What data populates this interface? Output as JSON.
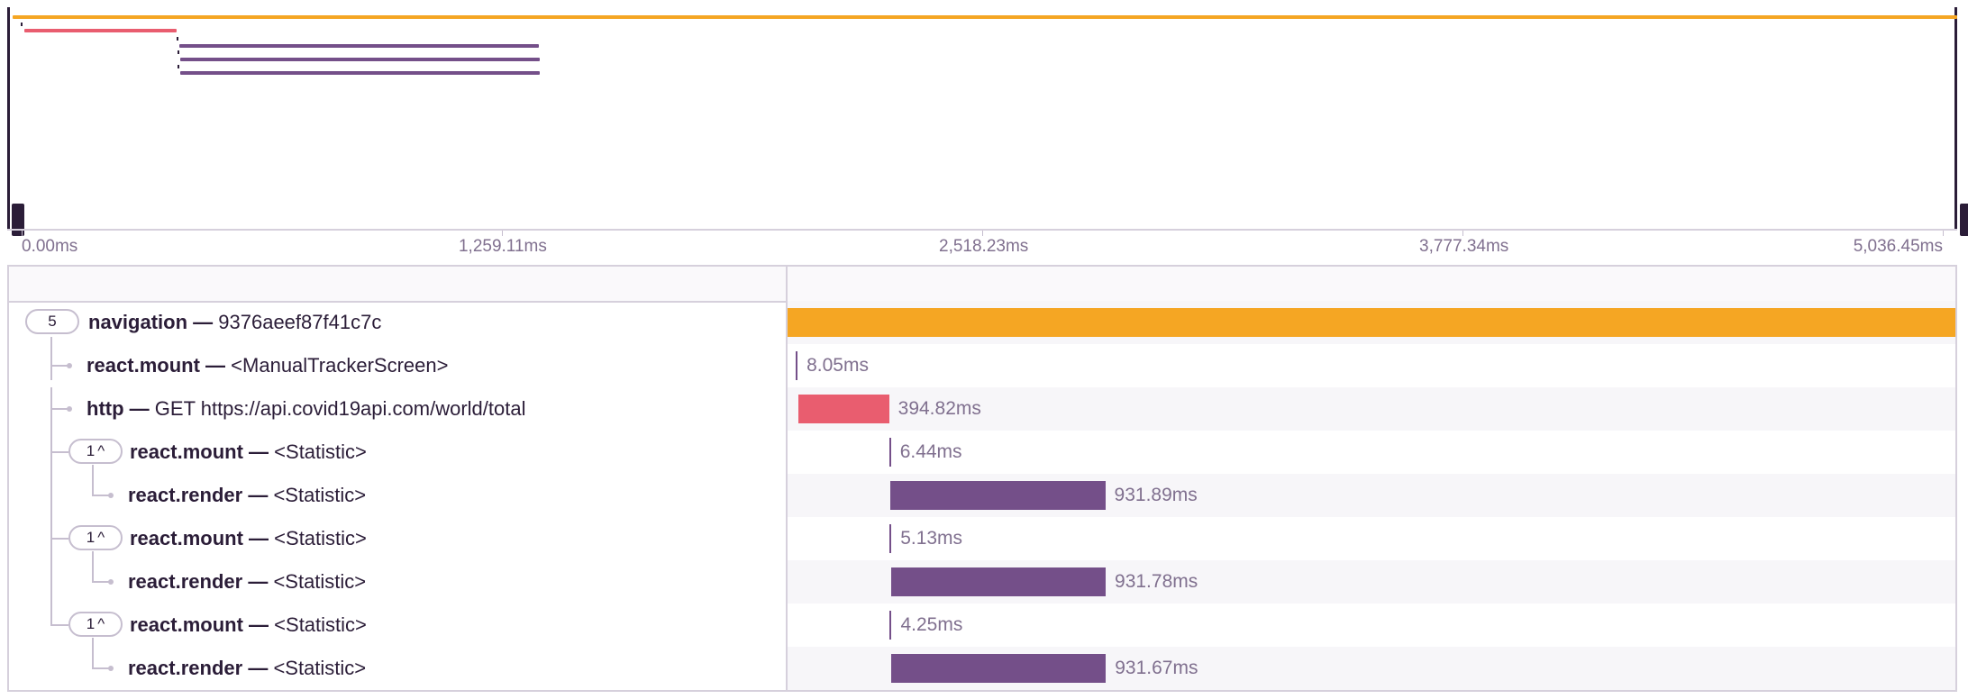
{
  "colors": {
    "navigation": "#f5a623",
    "http": "#e95d6f",
    "react": "#744f89",
    "minimap_mount": "#2b1d38"
  },
  "timeline": {
    "total_ms": 5036.45,
    "ticks": [
      "0.00ms",
      "1,259.11ms",
      "2,518.23ms",
      "3,777.34ms",
      "5,036.45ms"
    ],
    "tick_values": [
      0,
      1259.11,
      2518.23,
      3777.34,
      5036.45
    ]
  },
  "spans": [
    {
      "op": "navigation",
      "separator": "—",
      "description": "9376aeef87f41c7c",
      "start": 0,
      "duration": 5036.45,
      "duration_label": "5,036.45ms",
      "kind": "navigation",
      "children_count": "5",
      "collapse_icon": "",
      "depth": 0
    },
    {
      "op": "react.mount",
      "separator": "—",
      "description": "<ManualTrackerScreen>",
      "start": 20,
      "duration": 8.05,
      "duration_label": "8.05ms",
      "kind": "react-mount",
      "depth": 1
    },
    {
      "op": "http",
      "separator": "—",
      "description": "GET https://api.covid19api.com/world/total",
      "start": 30,
      "duration": 394.82,
      "duration_label": "394.82ms",
      "kind": "http",
      "depth": 1
    },
    {
      "op": "react.mount",
      "separator": "—",
      "description": "<Statistic>",
      "start": 425,
      "duration": 6.44,
      "duration_label": "6.44ms",
      "kind": "react-mount",
      "children_count": "1",
      "collapse_icon": "^",
      "depth": 1
    },
    {
      "op": "react.render",
      "separator": "—",
      "description": "<Statistic>",
      "start": 431,
      "duration": 931.89,
      "duration_label": "931.89ms",
      "kind": "react-render",
      "depth": 2
    },
    {
      "op": "react.mount",
      "separator": "—",
      "description": "<Statistic>",
      "start": 427,
      "duration": 5.13,
      "duration_label": "5.13ms",
      "kind": "react-mount",
      "children_count": "1",
      "collapse_icon": "^",
      "depth": 1
    },
    {
      "op": "react.render",
      "separator": "—",
      "description": "<Statistic>",
      "start": 433,
      "duration": 931.78,
      "duration_label": "931.78ms",
      "kind": "react-render",
      "depth": 2
    },
    {
      "op": "react.mount",
      "separator": "—",
      "description": "<Statistic>",
      "start": 428,
      "duration": 4.25,
      "duration_label": "4.25ms",
      "kind": "react-mount",
      "children_count": "1",
      "collapse_icon": "^",
      "depth": 1
    },
    {
      "op": "react.render",
      "separator": "—",
      "description": "<Statistic>",
      "start": 434,
      "duration": 931.67,
      "duration_label": "931.67ms",
      "kind": "react-render",
      "depth": 2
    }
  ]
}
